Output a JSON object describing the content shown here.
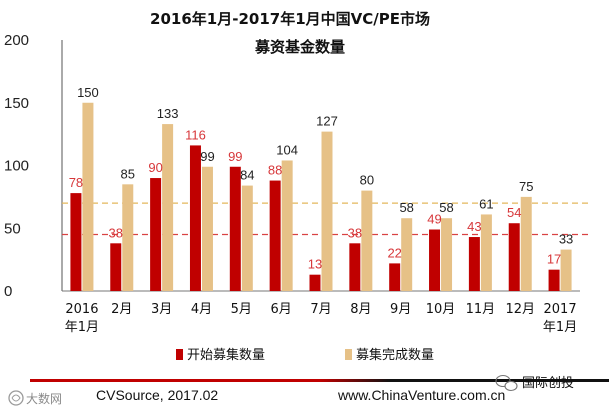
{
  "chart_data": {
    "type": "bar",
    "title_lines": [
      "2016年1月-2017年1月中国VC/PE市场",
      "募资基金数量"
    ],
    "categories": [
      [
        "2016",
        "年1月"
      ],
      [
        "2月"
      ],
      [
        "3月"
      ],
      [
        "4月"
      ],
      [
        "5月"
      ],
      [
        "6月"
      ],
      [
        "7月"
      ],
      [
        "8月"
      ],
      [
        "9月"
      ],
      [
        "10月"
      ],
      [
        "11月"
      ],
      [
        "12月"
      ],
      [
        "2017",
        "年1月"
      ]
    ],
    "series": [
      {
        "name": "开始募集数量",
        "color": "#c00000",
        "label_color": "#d7373a",
        "values": [
          78,
          38,
          90,
          116,
          99,
          88,
          13,
          38,
          22,
          49,
          43,
          54,
          17
        ]
      },
      {
        "name": "募集完成数量",
        "color": "#e6c187",
        "label_color": "#222222",
        "values": [
          150,
          85,
          133,
          99,
          84,
          104,
          127,
          80,
          58,
          58,
          61,
          75,
          33
        ]
      }
    ],
    "yticks": [
      "0",
      "50",
      "100",
      "150",
      "200"
    ],
    "ylim": [
      0,
      200
    ],
    "reference_lines": [
      {
        "value": 70,
        "color": "#e3b75c"
      },
      {
        "value": 45,
        "color": "#d94343"
      }
    ],
    "legend_placement": "bottom",
    "grid": false
  },
  "footer": {
    "source": "CVSource, 2017.02",
    "website": "www.ChinaVenture.com.cn",
    "brand": "国际创投"
  },
  "watermark": "大数网"
}
